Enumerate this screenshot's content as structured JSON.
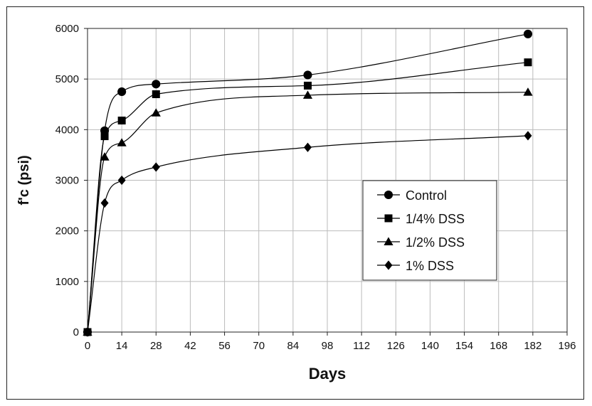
{
  "chart_data": {
    "type": "line",
    "xlabel": "Days",
    "ylabel": "f'c (psi)",
    "xlim": [
      0,
      196
    ],
    "ylim": [
      0,
      6000
    ],
    "xticks": [
      0,
      14,
      28,
      42,
      56,
      70,
      84,
      98,
      112,
      126,
      140,
      154,
      168,
      182,
      196
    ],
    "yticks": [
      0,
      1000,
      2000,
      3000,
      4000,
      5000,
      6000
    ],
    "grid": true,
    "legend_position": "center-right",
    "series": [
      {
        "name": "Control",
        "marker": "circle",
        "color": "#000000",
        "x": [
          0,
          7,
          14,
          28,
          90,
          180
        ],
        "y": [
          0,
          3980,
          4750,
          4900,
          5080,
          5890
        ]
      },
      {
        "name": "1/4% DSS",
        "marker": "square",
        "color": "#000000",
        "x": [
          0,
          7,
          14,
          28,
          90,
          180
        ],
        "y": [
          0,
          3870,
          4180,
          4700,
          4870,
          5330
        ]
      },
      {
        "name": "1/2% DSS",
        "marker": "triangle",
        "color": "#000000",
        "x": [
          0,
          7,
          14,
          28,
          90,
          180
        ],
        "y": [
          0,
          3460,
          3740,
          4330,
          4680,
          4740
        ]
      },
      {
        "name": "1% DSS",
        "marker": "diamond",
        "color": "#000000",
        "x": [
          0,
          7,
          14,
          28,
          90,
          180
        ],
        "y": [
          0,
          2550,
          3000,
          3260,
          3650,
          3880
        ]
      }
    ]
  }
}
